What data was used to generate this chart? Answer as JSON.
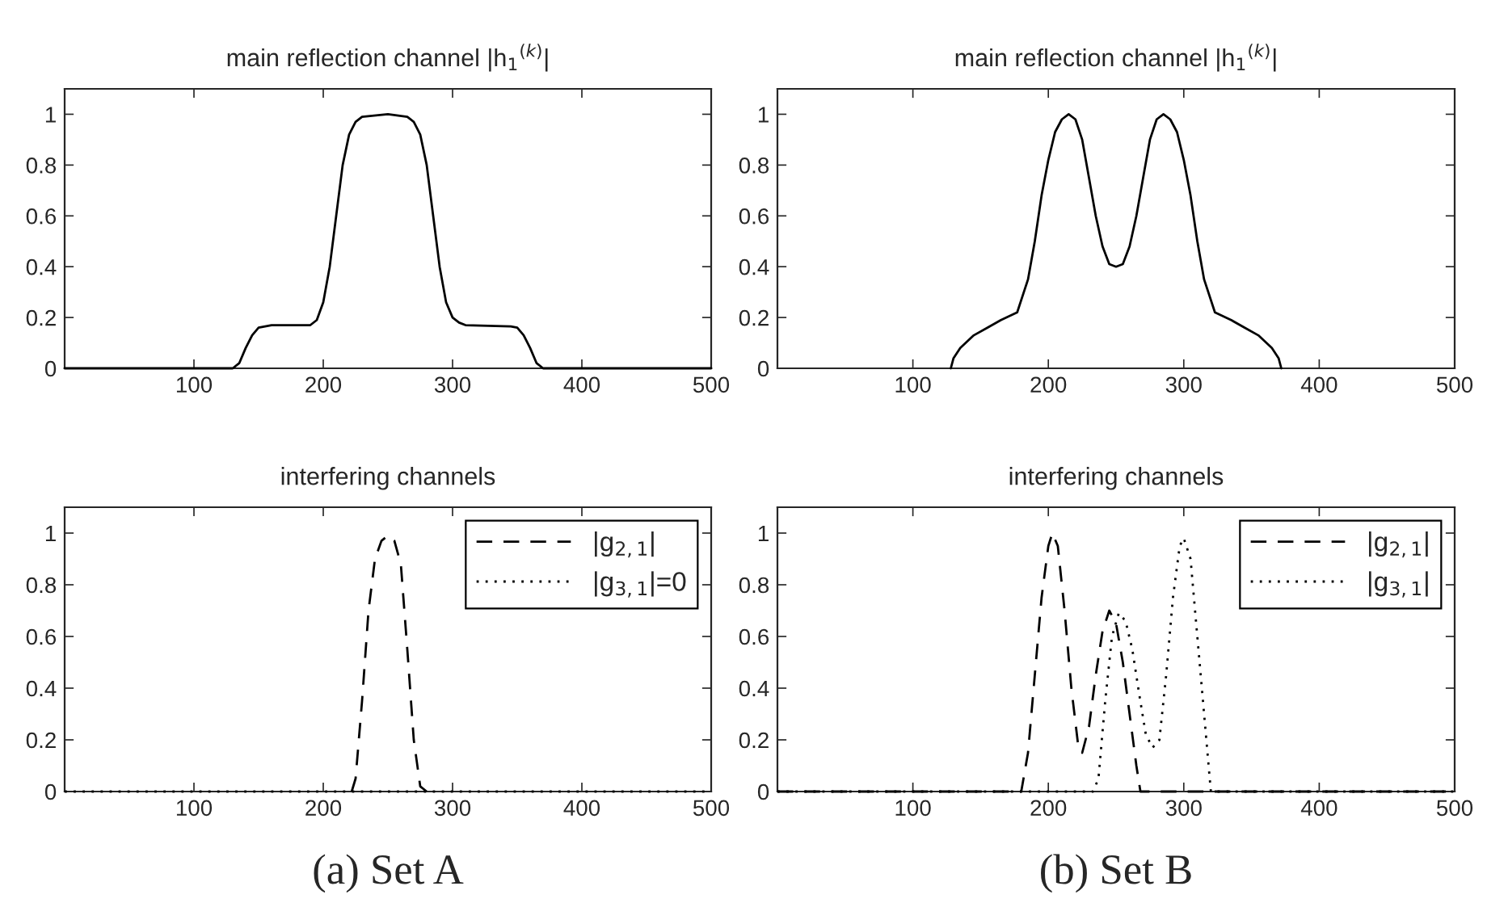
{
  "chart_data": [
    {
      "type": "line",
      "title": "main reflection channel |h$_{1}$$^{(k)}$|",
      "xlim": [
        0,
        500
      ],
      "ylim": [
        0,
        1.1
      ],
      "xticks": [
        100,
        200,
        300,
        400,
        500
      ],
      "yticks": [
        0,
        0.2,
        0.4,
        0.6,
        0.8,
        1
      ],
      "grid": false,
      "legend": false,
      "series": [
        {
          "color": "#000000",
          "line_style": "solid",
          "x": [
            0,
            130,
            135,
            140,
            145,
            150,
            160,
            190,
            195,
            200,
            205,
            210,
            215,
            220,
            225,
            230,
            250,
            265,
            270,
            275,
            280,
            285,
            290,
            295,
            300,
            305,
            310,
            345,
            350,
            355,
            360,
            365,
            370,
            500
          ],
          "values": [
            0,
            0,
            0.02,
            0.08,
            0.13,
            0.16,
            0.17,
            0.17,
            0.19,
            0.26,
            0.4,
            0.6,
            0.8,
            0.92,
            0.97,
            0.99,
            1.0,
            0.99,
            0.97,
            0.92,
            0.8,
            0.6,
            0.4,
            0.26,
            0.2,
            0.18,
            0.17,
            0.165,
            0.16,
            0.13,
            0.08,
            0.02,
            0,
            0
          ]
        }
      ]
    },
    {
      "type": "line",
      "title": "main reflection channel |h$_{1}$$^{(k)}$|",
      "xlim": [
        0,
        500
      ],
      "ylim": [
        0,
        1.1
      ],
      "xticks": [
        100,
        200,
        300,
        400,
        500
      ],
      "yticks": [
        0,
        0.2,
        0.4,
        0.6,
        0.8,
        1
      ],
      "grid": false,
      "legend": false,
      "series": [
        {
          "color": "#000000",
          "line_style": "solid",
          "x": [
            128,
            130,
            135,
            145,
            155,
            165,
            177,
            185,
            190,
            195,
            200,
            205,
            210,
            215,
            220,
            225,
            230,
            235,
            240,
            245,
            250,
            255,
            260,
            265,
            270,
            275,
            280,
            285,
            290,
            295,
            300,
            305,
            310,
            315,
            323,
            335,
            345,
            355,
            365,
            370,
            372
          ],
          "values": [
            0,
            0.04,
            0.08,
            0.13,
            0.16,
            0.19,
            0.22,
            0.35,
            0.5,
            0.68,
            0.82,
            0.93,
            0.98,
            1.0,
            0.98,
            0.9,
            0.75,
            0.6,
            0.48,
            0.41,
            0.4,
            0.41,
            0.48,
            0.6,
            0.75,
            0.9,
            0.98,
            1.0,
            0.98,
            0.93,
            0.82,
            0.68,
            0.5,
            0.35,
            0.22,
            0.19,
            0.16,
            0.13,
            0.08,
            0.04,
            0
          ]
        }
      ]
    },
    {
      "type": "line",
      "title": "interfering channels",
      "xlim": [
        0,
        500
      ],
      "ylim": [
        0,
        1.1
      ],
      "xticks": [
        100,
        200,
        300,
        400,
        500
      ],
      "yticks": [
        0,
        0.2,
        0.4,
        0.6,
        0.8,
        1
      ],
      "grid": false,
      "legend": "top right",
      "annotations": [
        "(a) Set A"
      ],
      "series": [
        {
          "name": "|g$_{2,1}$|",
          "color": "#000000",
          "line_style": "dashed",
          "x": [
            222,
            225,
            230,
            235,
            240,
            245,
            250,
            255,
            260,
            265,
            270,
            275,
            280
          ],
          "values": [
            0,
            0.05,
            0.35,
            0.7,
            0.9,
            0.97,
            0.99,
            0.97,
            0.88,
            0.55,
            0.2,
            0.02,
            0
          ]
        },
        {
          "name": "|g$_{3,1}$|=0",
          "color": "#000000",
          "line_style": "dotted",
          "x": [
            0,
            500
          ],
          "values": [
            0,
            0
          ]
        }
      ]
    },
    {
      "type": "line",
      "title": "interfering channels",
      "xlim": [
        0,
        500
      ],
      "ylim": [
        0,
        1.1
      ],
      "xticks": [
        100,
        200,
        300,
        400,
        500
      ],
      "yticks": [
        0,
        0.2,
        0.4,
        0.6,
        0.8,
        1
      ],
      "grid": false,
      "legend": "top right",
      "annotations": [
        "(b) Set B"
      ],
      "series": [
        {
          "name": "|g$_{2,1}$|",
          "color": "#000000",
          "line_style": "dashed",
          "x": [
            0,
            180,
            185,
            190,
            195,
            200,
            203,
            207,
            212,
            217,
            222,
            225,
            230,
            235,
            240,
            245,
            250,
            255,
            260,
            265,
            268,
            500
          ],
          "values": [
            0,
            0,
            0.15,
            0.45,
            0.75,
            0.95,
            1.0,
            0.95,
            0.7,
            0.4,
            0.18,
            0.15,
            0.25,
            0.45,
            0.62,
            0.7,
            0.65,
            0.5,
            0.3,
            0.1,
            0,
            0
          ]
        },
        {
          "name": "|g$_{3,1}$|",
          "color": "#000000",
          "line_style": "dotted",
          "x": [
            0,
            233,
            237,
            242,
            247,
            252,
            257,
            262,
            267,
            272,
            277,
            282,
            287,
            292,
            297,
            300,
            305,
            310,
            315,
            320,
            500
          ],
          "values": [
            0,
            0,
            0.05,
            0.35,
            0.6,
            0.69,
            0.66,
            0.55,
            0.38,
            0.22,
            0.17,
            0.2,
            0.45,
            0.75,
            0.95,
            0.98,
            0.9,
            0.6,
            0.3,
            0,
            0
          ]
        }
      ]
    }
  ]
}
